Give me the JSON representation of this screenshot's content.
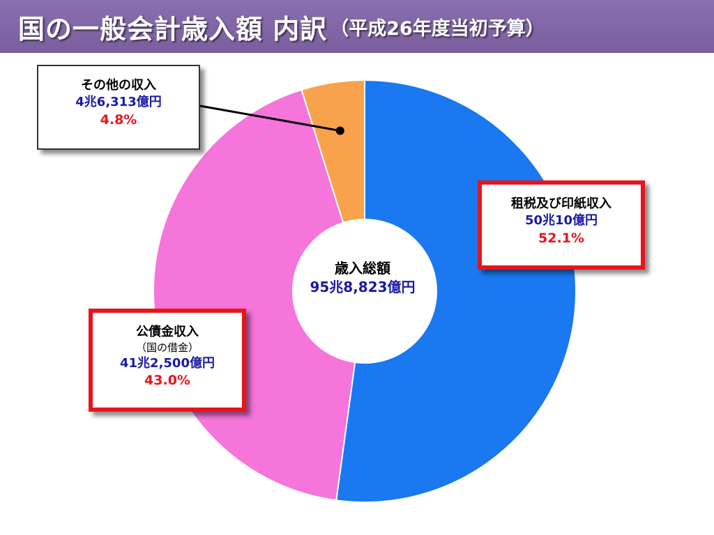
{
  "title": {
    "main": "国の一般会計歳入額 内訳",
    "paren": "（平成26年度当初予算）"
  },
  "center": {
    "name": "歳入総額",
    "value": "95兆8,823億円"
  },
  "callouts": {
    "tax": {
      "name": "租税及び印紙収入",
      "value": "50兆10億円",
      "pct": "52.1%"
    },
    "bond": {
      "name": "公債金収入",
      "sub": "（国の借金）",
      "value": "41兆2,500億円",
      "pct": "43.0%"
    },
    "other": {
      "name": "その他の収入",
      "value": "4兆6,313億円",
      "pct": "4.8%"
    }
  },
  "chart_data": {
    "type": "pie",
    "variant": "donut",
    "title": "国の一般会計歳入額 内訳（平成26年度当初予算）",
    "total_label": "歳入総額 95兆8,823億円",
    "unit": "億円",
    "slices": [
      {
        "label": "租税及び印紙収入",
        "value": 500010,
        "percent": 52.1,
        "color": "#1a78f0"
      },
      {
        "label": "公債金収入",
        "value": 412500,
        "percent": 43.0,
        "color": "#f575db"
      },
      {
        "label": "その他の収入",
        "value": 46313,
        "percent": 4.8,
        "color": "#f9a24c"
      }
    ],
    "start": "12 o'clock",
    "direction": "clockwise"
  }
}
